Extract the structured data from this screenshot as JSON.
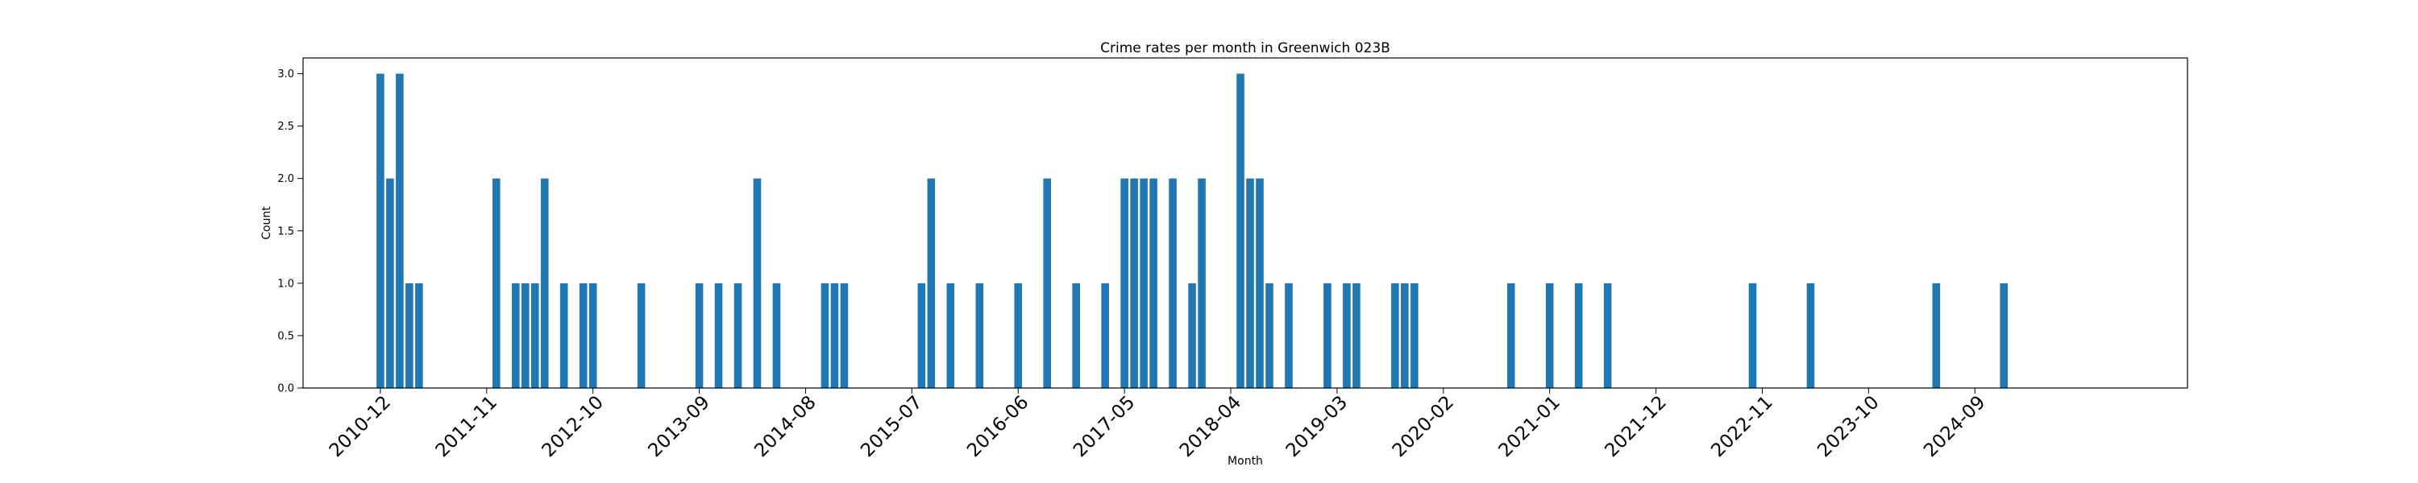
{
  "chart_data": {
    "type": "bar",
    "title": "Crime rates per month in Greenwich 023B",
    "xlabel": "Month",
    "ylabel": "Count",
    "ylim": [
      0,
      3.15
    ],
    "xlim": [
      "2010-04",
      "2026-07"
    ],
    "yticks": [
      0.0,
      0.5,
      1.0,
      1.5,
      2.0,
      2.5,
      3.0
    ],
    "ytick_labels": [
      "0.0",
      "0.5",
      "1.0",
      "1.5",
      "2.0",
      "2.5",
      "3.0"
    ],
    "xtick_labels": [
      "2010-12",
      "2011-11",
      "2012-10",
      "2013-09",
      "2014-08",
      "2015-07",
      "2016-06",
      "2017-05",
      "2018-04",
      "2019-03",
      "2020-02",
      "2021-01",
      "2021-12",
      "2022-11",
      "2023-10",
      "2024-09"
    ],
    "bar_color": "#1f77b4",
    "grid": false,
    "legend": "none",
    "months": [
      "2010-12",
      "2011-01",
      "2011-02",
      "2011-03",
      "2011-04",
      "2011-12",
      "2012-02",
      "2012-03",
      "2012-04",
      "2012-05",
      "2012-07",
      "2012-09",
      "2012-10",
      "2013-03",
      "2013-09",
      "2013-11",
      "2014-01",
      "2014-03",
      "2014-05",
      "2014-10",
      "2014-11",
      "2014-12",
      "2015-08",
      "2015-09",
      "2015-11",
      "2016-02",
      "2016-06",
      "2016-09",
      "2016-12",
      "2017-03",
      "2017-05",
      "2017-06",
      "2017-07",
      "2017-08",
      "2017-10",
      "2017-12",
      "2018-01",
      "2018-05",
      "2018-06",
      "2018-07",
      "2018-08",
      "2018-10",
      "2019-02",
      "2019-04",
      "2019-05",
      "2019-09",
      "2019-10",
      "2019-11",
      "2020-09",
      "2021-01",
      "2021-04",
      "2021-07",
      "2022-10",
      "2023-04",
      "2024-05",
      "2024-12"
    ],
    "values": [
      3,
      2,
      3,
      1,
      1,
      2,
      1,
      1,
      1,
      2,
      1,
      1,
      1,
      1,
      1,
      1,
      1,
      2,
      1,
      1,
      1,
      1,
      1,
      2,
      1,
      1,
      1,
      2,
      1,
      1,
      2,
      2,
      2,
      2,
      2,
      1,
      2,
      3,
      2,
      2,
      1,
      1,
      1,
      1,
      1,
      1,
      1,
      1,
      1,
      1,
      1,
      1,
      1,
      1,
      1,
      1
    ]
  }
}
